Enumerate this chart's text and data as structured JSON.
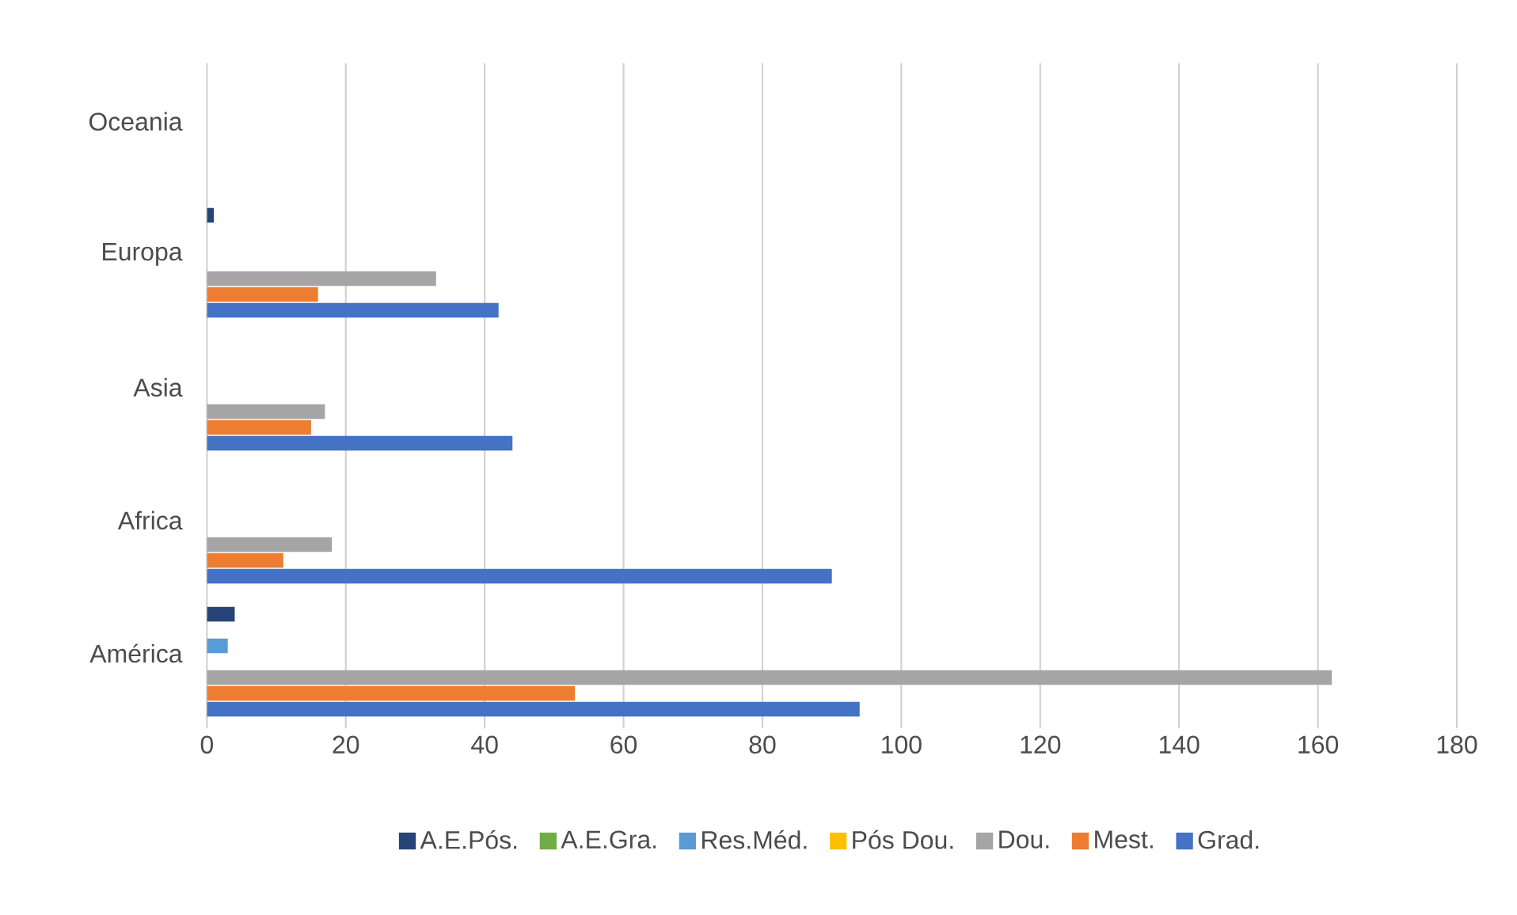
{
  "chart_data": {
    "type": "bar",
    "orientation": "horizontal",
    "categories": [
      "Oceania",
      "Europa",
      "Asia",
      "Africa",
      "América"
    ],
    "series": [
      {
        "name": "Grad.",
        "color": "#4472c4",
        "values": [
          0,
          42,
          44,
          90,
          94
        ]
      },
      {
        "name": "Mest.",
        "color": "#ed7d31",
        "values": [
          0,
          16,
          15,
          11,
          53
        ]
      },
      {
        "name": "Dou.",
        "color": "#a5a5a5",
        "values": [
          0,
          33,
          17,
          18,
          162
        ]
      },
      {
        "name": "Pós Dou.",
        "color": "#ffc000",
        "values": [
          0,
          0,
          0,
          0,
          0
        ]
      },
      {
        "name": "Res.Méd.",
        "color": "#5b9bd5",
        "values": [
          0,
          0,
          0,
          0,
          3
        ]
      },
      {
        "name": "A.E.Gra.",
        "color": "#70ad47",
        "values": [
          0,
          0,
          0,
          0,
          0
        ]
      },
      {
        "name": "A.E.Pós.",
        "color": "#264478",
        "values": [
          0,
          1,
          0,
          0,
          4
        ]
      }
    ],
    "xlim": [
      0,
      180
    ],
    "xticks": [
      0,
      20,
      40,
      60,
      80,
      100,
      120,
      140,
      160,
      180
    ],
    "grid": "x",
    "legend": "bottom"
  }
}
